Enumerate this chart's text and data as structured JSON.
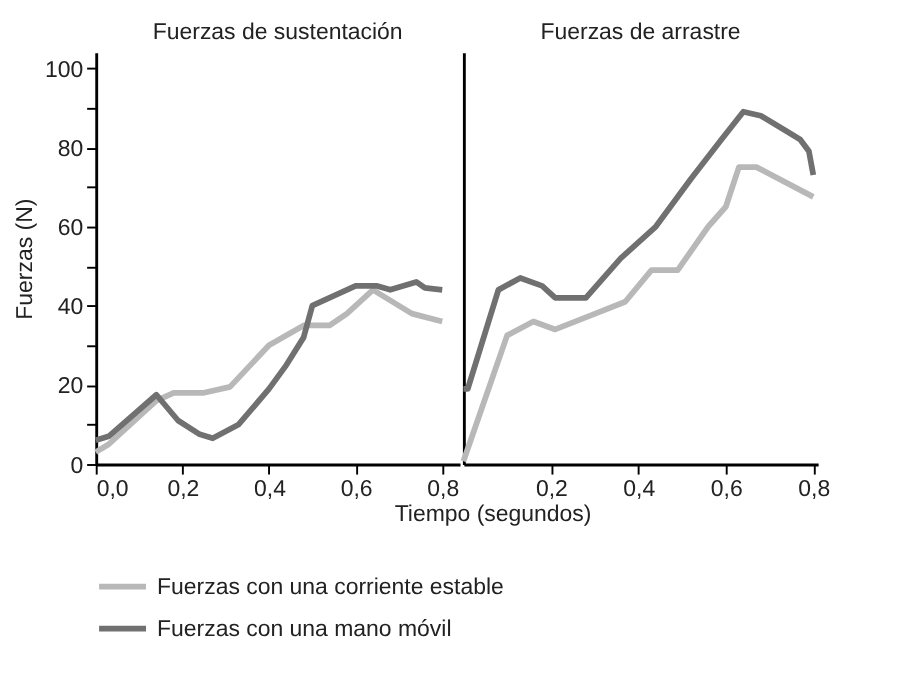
{
  "chart_data": [
    {
      "type": "line",
      "title": "Fuerzas de sustentación",
      "ylabel": "Fuerzas (N)",
      "xlabel": "Tiempo (segundos)",
      "legend": "bottom",
      "xlim": [
        0,
        0.84
      ],
      "xticks": [
        {
          "value": 0,
          "label": "0,0"
        },
        {
          "value": 0.2,
          "label": "0,2"
        },
        {
          "value": 0.4,
          "label": "0,4"
        },
        {
          "value": 0.6,
          "label": "0,6"
        },
        {
          "value": 0.8,
          "label": "0,8"
        }
      ],
      "ylim": [
        0,
        104
      ],
      "yticks": [
        0,
        {
          "value": 10,
          "label": null
        },
        20,
        {
          "value": 30,
          "label": null
        },
        40,
        {
          "value": 50,
          "label": null
        },
        60,
        {
          "value": 70,
          "label": null
        },
        80,
        {
          "value": 90,
          "label": null
        },
        100
      ],
      "series": [
        {
          "name": "Fuerzas con una corriente estable",
          "color": "#b8b8b8",
          "x": [
            0,
            0.03,
            0.14,
            0.18,
            0.25,
            0.31,
            0.4,
            0.48,
            0.54,
            0.58,
            0.64,
            0.73,
            0.8
          ],
          "values": [
            3,
            5,
            16,
            18,
            18,
            19.5,
            30,
            35,
            35,
            38,
            44,
            38,
            36
          ]
        },
        {
          "name": "Fuerzas con una mano móvil",
          "color": "#707070",
          "x": [
            0,
            0.03,
            0.14,
            0.19,
            0.24,
            0.27,
            0.33,
            0.4,
            0.44,
            0.48,
            0.5,
            0.6,
            0.65,
            0.68,
            0.74,
            0.76,
            0.8
          ],
          "values": [
            6,
            7,
            17.5,
            11,
            7.5,
            6.5,
            10,
            19,
            25,
            32,
            40,
            45,
            45,
            44,
            46,
            44.5,
            44
          ]
        }
      ]
    },
    {
      "type": "line",
      "title": "Fuerzas de arrastre",
      "legend": "bottom",
      "tick_labels": "x",
      "xlim": [
        0,
        0.81
      ],
      "xticks": [
        {
          "value": 0.2,
          "label": "0,2"
        },
        {
          "value": 0.4,
          "label": "0,4"
        },
        {
          "value": 0.6,
          "label": "0,6"
        },
        {
          "value": 0.8,
          "label": "0,8"
        }
      ],
      "ylim": [
        0,
        104
      ],
      "series": [
        {
          "name": "Fuerzas con una corriente estable",
          "color": "#b8b8b8",
          "x": [
            0,
            0.1,
            0.16,
            0.21,
            0.29,
            0.37,
            0.43,
            0.49,
            0.56,
            0.6,
            0.63,
            0.67,
            0.8
          ],
          "values": [
            0.7,
            32.5,
            36,
            34,
            37.5,
            41,
            49,
            49,
            60,
            65,
            75,
            75,
            67.5
          ]
        },
        {
          "name": "Fuerzas con una mano móvil",
          "color": "#707070",
          "x": [
            0,
            0.01,
            0.08,
            0.13,
            0.18,
            0.21,
            0.28,
            0.36,
            0.44,
            0.52,
            0.59,
            0.64,
            0.68,
            0.74,
            0.77,
            0.79,
            0.8
          ],
          "values": [
            19,
            19,
            44,
            47,
            45,
            42,
            42,
            52,
            60,
            72,
            82,
            89,
            88,
            84,
            82,
            79,
            73
          ]
        }
      ]
    }
  ]
}
